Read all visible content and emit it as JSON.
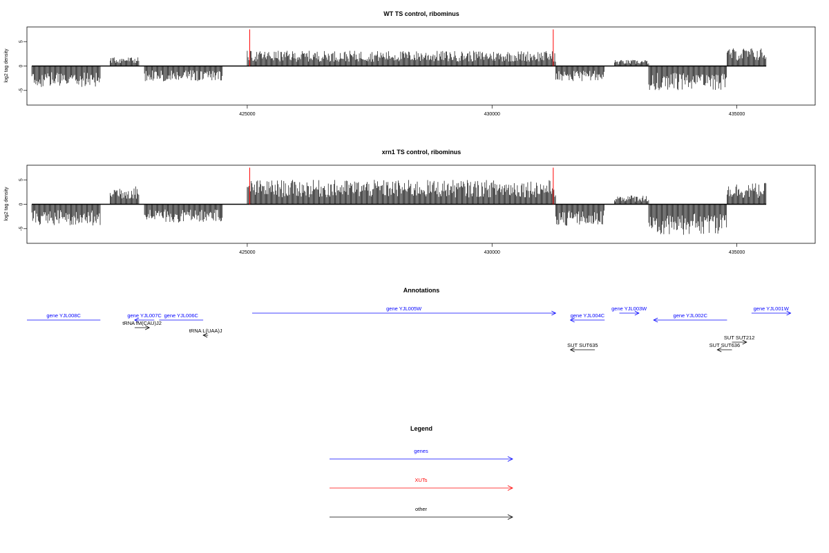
{
  "chart_data": [
    {
      "type": "bar",
      "title": "WT TS control, ribominus",
      "ylabel": "log2 tag density",
      "xlabel": "",
      "xlim": [
        420500,
        436600
      ],
      "ylim": [
        -8,
        8
      ],
      "x_ticks": [
        425000,
        430000,
        435000
      ],
      "y_ticks": [
        -5,
        0,
        5
      ],
      "grid": false,
      "segments": [
        {
          "start": 420600,
          "end": 422000,
          "level": -3.5
        },
        {
          "start": 422200,
          "end": 422800,
          "level": 1.5
        },
        {
          "start": 422900,
          "end": 424500,
          "level": -2.5
        },
        {
          "start": 425000,
          "end": 431300,
          "level": 2.5
        },
        {
          "start": 431300,
          "end": 432300,
          "level": -2.5
        },
        {
          "start": 432500,
          "end": 433200,
          "level": 1.0
        },
        {
          "start": 433200,
          "end": 434800,
          "level": -4.0
        },
        {
          "start": 434800,
          "end": 435600,
          "level": 3.0
        }
      ],
      "markers": [
        {
          "x": 425050,
          "y": 7.5,
          "color": "#ff0000"
        },
        {
          "x": 431250,
          "y": 7.5,
          "color": "#ff0000"
        }
      ]
    },
    {
      "type": "bar",
      "title": "xrn1 TS control, ribominus",
      "ylabel": "log2 tag density",
      "xlabel": "",
      "xlim": [
        420500,
        436600
      ],
      "ylim": [
        -8,
        8
      ],
      "x_ticks": [
        425000,
        430000,
        435000
      ],
      "y_ticks": [
        -5,
        0,
        5
      ],
      "grid": false,
      "segments": [
        {
          "start": 420600,
          "end": 422000,
          "level": -3.5
        },
        {
          "start": 422200,
          "end": 422800,
          "level": 3.0
        },
        {
          "start": 422900,
          "end": 424500,
          "level": -3.0
        },
        {
          "start": 425000,
          "end": 431300,
          "level": 4.0
        },
        {
          "start": 431300,
          "end": 432300,
          "level": -3.5
        },
        {
          "start": 432500,
          "end": 433200,
          "level": 1.5
        },
        {
          "start": 433200,
          "end": 434800,
          "level": -5.0
        },
        {
          "start": 434800,
          "end": 435600,
          "level": 3.5
        }
      ],
      "markers": [
        {
          "x": 425050,
          "y": 7.5,
          "color": "#ff0000"
        },
        {
          "x": 431250,
          "y": 7.5,
          "color": "#ff0000"
        }
      ]
    }
  ],
  "annotations": {
    "title": "Annotations",
    "features": [
      {
        "label": "gene YJL008C",
        "color": "#0000ff",
        "start": 422000,
        "end": 420500,
        "row": 0,
        "arrow": false
      },
      {
        "label": "gene YJL007C",
        "color": "#0000ff",
        "start": 423100,
        "end": 422700,
        "row": 0,
        "arrow": true
      },
      {
        "label": "gene YJL006C",
        "color": "#0000ff",
        "start": 424100,
        "end": 423200,
        "row": 0,
        "arrow": false
      },
      {
        "label": "tRNA fM(CAU)J2",
        "color": "#000000",
        "start": 422700,
        "end": 423000,
        "row": 1,
        "arrow": true
      },
      {
        "label": "tRNA L(UAA)J",
        "color": "#000000",
        "start": 424200,
        "end": 424100,
        "row": 2,
        "arrow": true
      },
      {
        "label": "gene YJL005W",
        "color": "#0000ff",
        "start": 425100,
        "end": 431300,
        "row": -1,
        "arrow": true
      },
      {
        "label": "gene YJL004C",
        "color": "#0000ff",
        "start": 432300,
        "end": 431600,
        "row": 0,
        "arrow": true
      },
      {
        "label": "gene YJL003W",
        "color": "#0000ff",
        "start": 432600,
        "end": 433000,
        "row": -1,
        "arrow": true
      },
      {
        "label": "gene YJL002C",
        "color": "#0000ff",
        "start": 434800,
        "end": 433300,
        "row": 0,
        "arrow": true
      },
      {
        "label": "gene YJL001W",
        "color": "#0000ff",
        "start": 435300,
        "end": 436100,
        "row": -1,
        "arrow": true
      },
      {
        "label": "SUT SUT212",
        "color": "#000000",
        "start": 434900,
        "end": 435200,
        "row": 3,
        "arrow": true
      },
      {
        "label": "SUT SUT635",
        "color": "#000000",
        "start": 432100,
        "end": 431600,
        "row": 4,
        "arrow": true
      },
      {
        "label": "SUT SUT636",
        "color": "#000000",
        "start": 434900,
        "end": 434600,
        "row": 4,
        "arrow": true
      }
    ]
  },
  "legend": {
    "title": "Legend",
    "items": [
      {
        "label": "genes",
        "color": "#0000ff"
      },
      {
        "label": "XUTs",
        "color": "#ff0000"
      },
      {
        "label": "other",
        "color": "#000000"
      }
    ]
  }
}
